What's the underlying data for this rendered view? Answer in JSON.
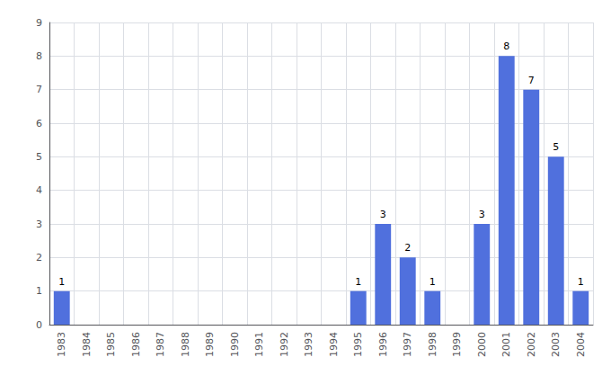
{
  "chart_data": {
    "type": "bar",
    "categories": [
      "1983",
      "1984",
      "1985",
      "1986",
      "1987",
      "1988",
      "1989",
      "1990",
      "1991",
      "1992",
      "1993",
      "1994",
      "1995",
      "1996",
      "1997",
      "1998",
      "1999",
      "2000",
      "2001",
      "2002",
      "2003",
      "2004"
    ],
    "values": [
      1,
      0,
      0,
      0,
      0,
      0,
      0,
      0,
      0,
      0,
      0,
      0,
      1,
      3,
      2,
      1,
      0,
      3,
      8,
      7,
      5,
      1
    ],
    "value_labels": [
      "1",
      null,
      null,
      null,
      null,
      null,
      null,
      null,
      null,
      null,
      null,
      null,
      "1",
      "3",
      "2",
      "1",
      null,
      "3",
      "8",
      "7",
      "5",
      "1"
    ],
    "data_labels": true,
    "ylim": [
      0,
      9
    ],
    "yticks": [
      0,
      1,
      2,
      3,
      4,
      5,
      6,
      7,
      8,
      9
    ],
    "grid": true
  }
}
